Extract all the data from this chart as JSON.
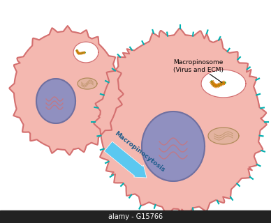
{
  "bg_color": "#ffffff",
  "cell_color": "#f4b8b0",
  "cell_edge_color": "#d47070",
  "nucleus_color": "#9090c0",
  "nucleus_edge_color": "#7070a0",
  "macropinosome_color": "#ffffff",
  "macropinosome_edge_color": "#d47070",
  "arrow_color": "#5bc8f0",
  "arrow_text": "Macropinocytosis",
  "label_macropinosome": "Macropinosome",
  "label_virus_ecm": "(Virus and ECM)",
  "spike_color": "#00b0b0",
  "virus_body_color": "#4a9a2a",
  "virus_spike_color": "#e07800",
  "er_color": "#d47070",
  "watermark": "alamy - G15766",
  "bottom_bar_color": "#222222"
}
